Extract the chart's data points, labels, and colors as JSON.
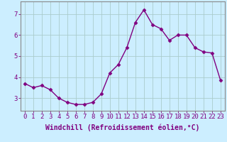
{
  "x": [
    0,
    1,
    2,
    3,
    4,
    5,
    6,
    7,
    8,
    9,
    10,
    11,
    12,
    13,
    14,
    15,
    16,
    17,
    18,
    19,
    20,
    21,
    22,
    23
  ],
  "y": [
    3.7,
    3.5,
    3.6,
    3.4,
    3.0,
    2.8,
    2.7,
    2.7,
    2.8,
    3.2,
    4.2,
    4.6,
    5.4,
    6.6,
    7.2,
    6.5,
    6.3,
    5.75,
    6.0,
    6.0,
    5.4,
    5.2,
    5.15,
    3.85
  ],
  "line_color": "#800080",
  "marker": "D",
  "marker_size": 2.5,
  "bg_color": "#cceeff",
  "grid_color": "#aacccc",
  "xlabel": "Windchill (Refroidissement éolien,°C)",
  "xlabel_fontsize": 7,
  "yticks": [
    3,
    4,
    5,
    6,
    7
  ],
  "xticks": [
    0,
    1,
    2,
    3,
    4,
    5,
    6,
    7,
    8,
    9,
    10,
    11,
    12,
    13,
    14,
    15,
    16,
    17,
    18,
    19,
    20,
    21,
    22,
    23
  ],
  "ylim": [
    2.4,
    7.6
  ],
  "xlim": [
    -0.5,
    23.5
  ],
  "tick_fontsize": 6.5,
  "line_width": 1.0,
  "spine_color": "#888888"
}
